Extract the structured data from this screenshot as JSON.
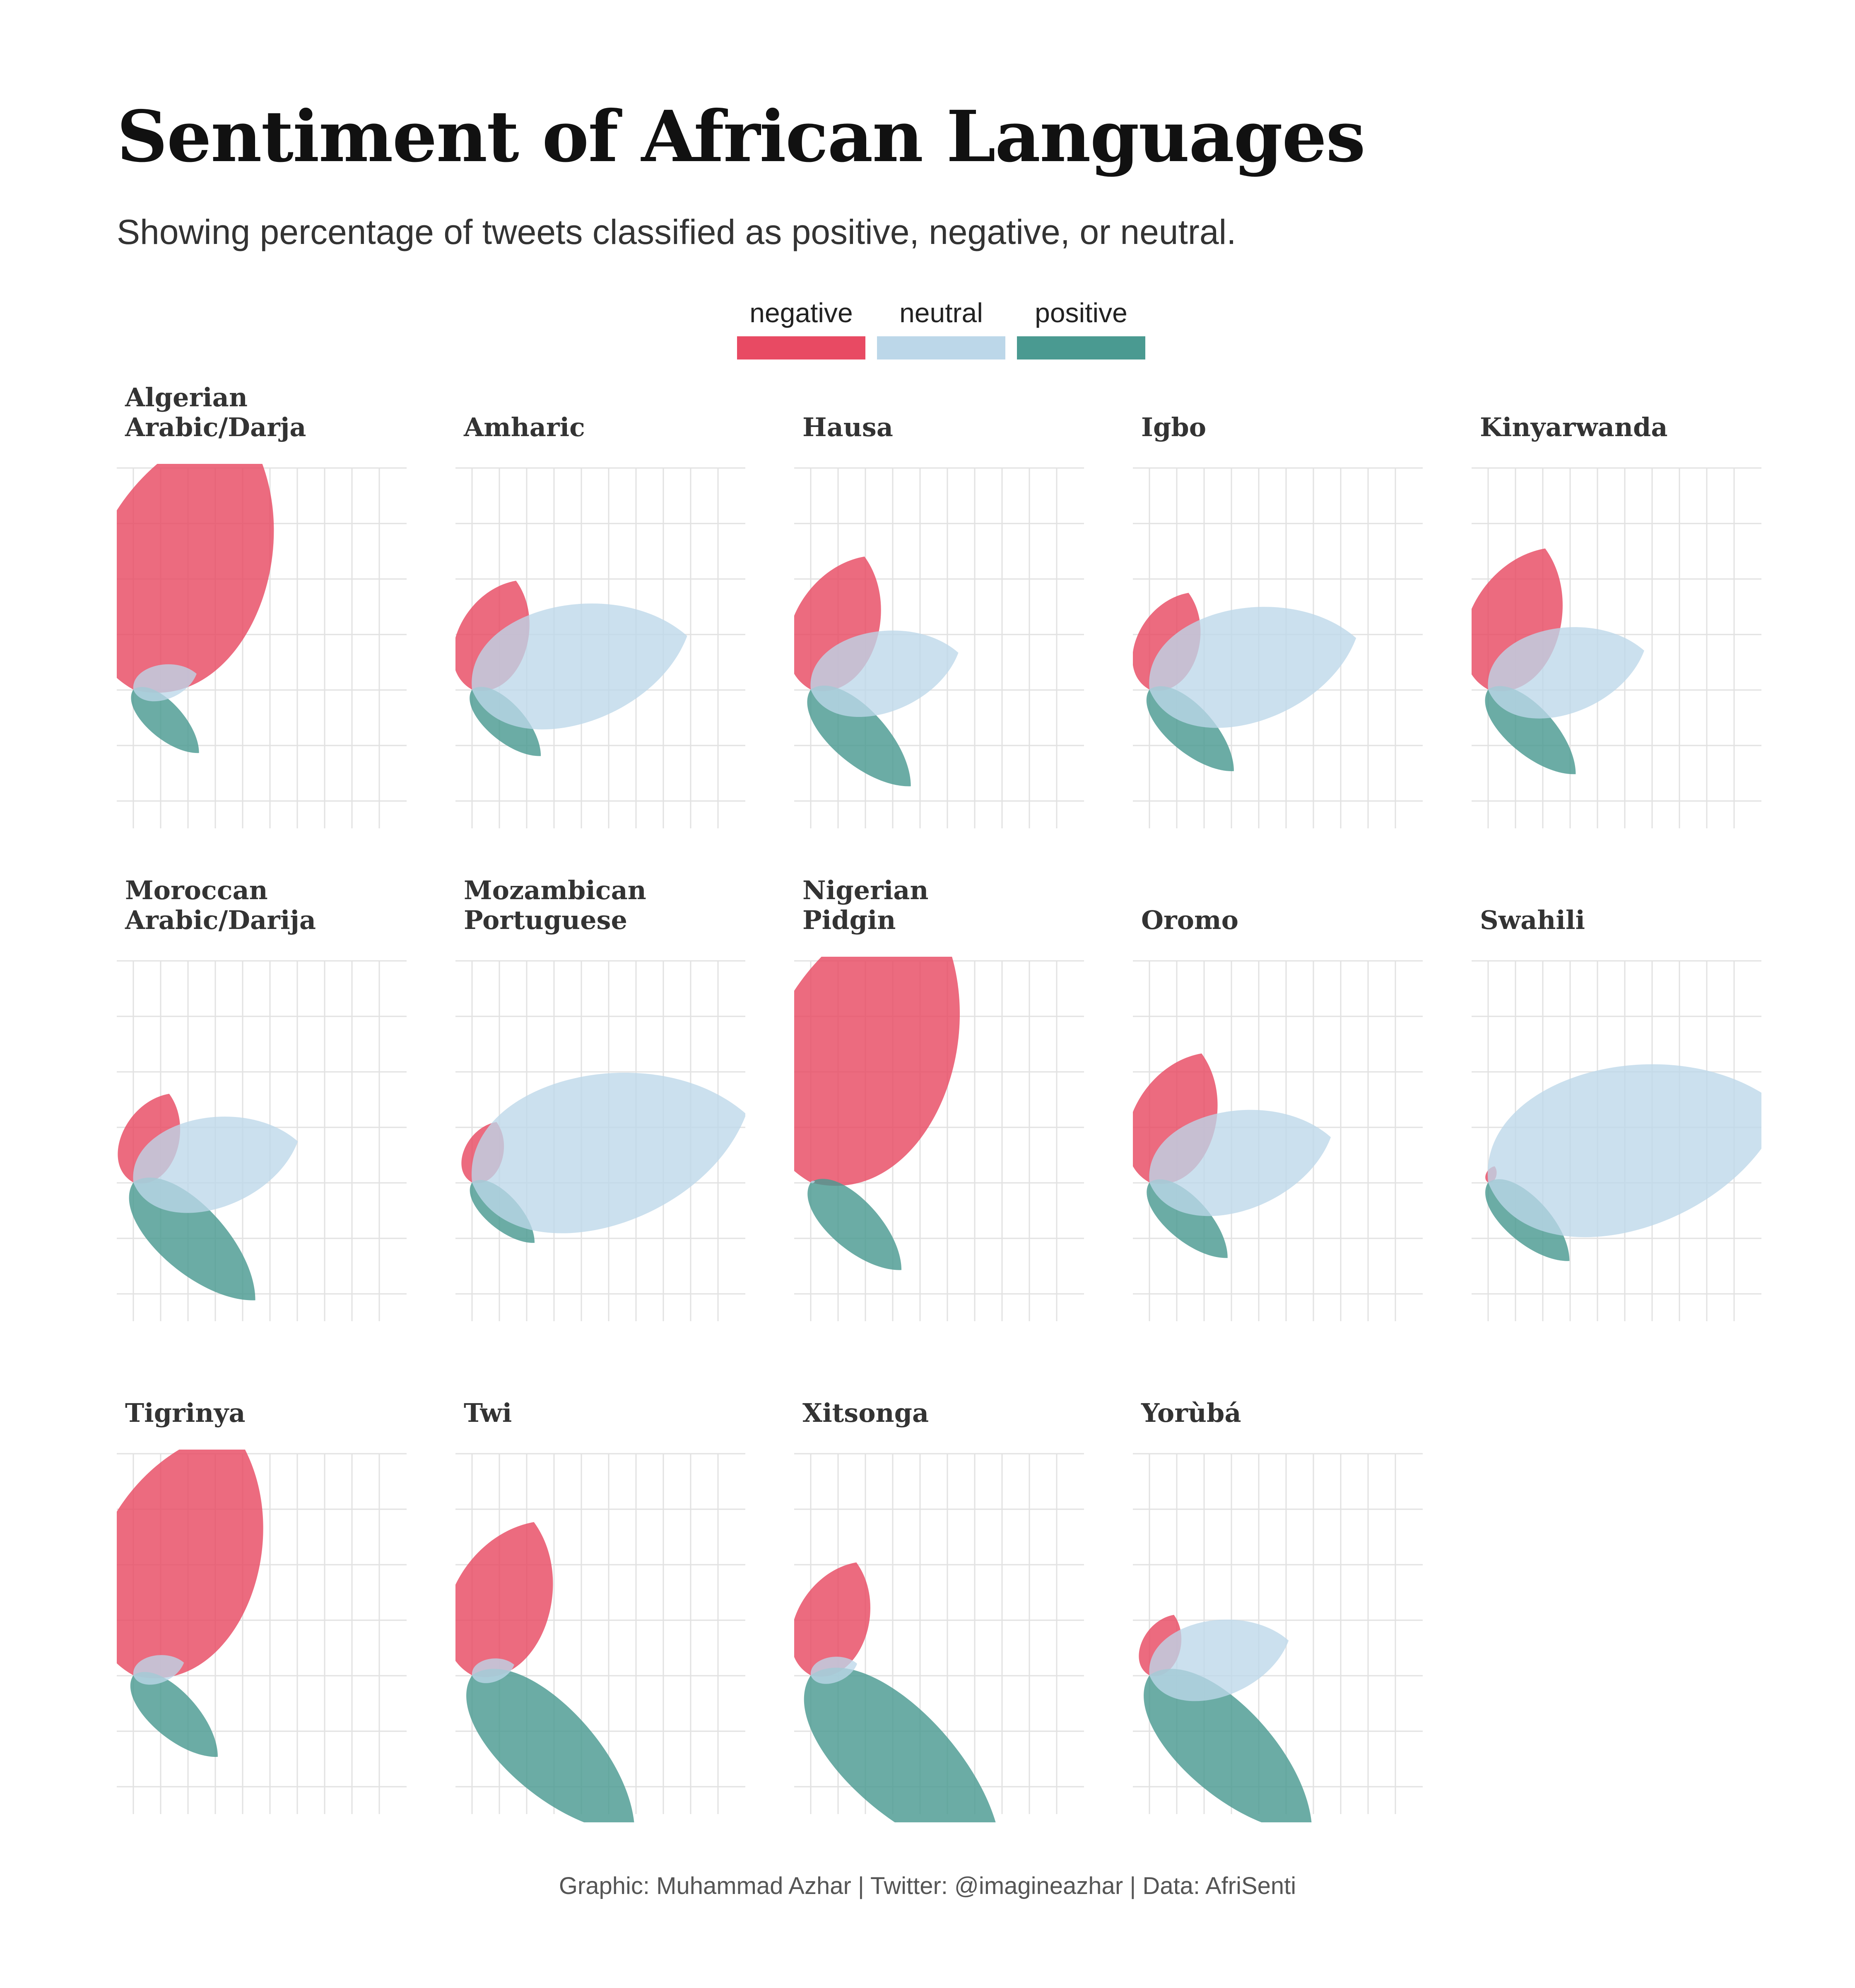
{
  "title": "Sentiment of African Languages",
  "subtitle": "Showing percentage of tweets classified as positive, negative, or neutral.",
  "legend": [
    {
      "label": "negative",
      "color": "#e84a63"
    },
    {
      "label": "neutral",
      "color": "#bcd7e9"
    },
    {
      "label": "positive",
      "color": "#4a9a91"
    }
  ],
  "footer": "Graphic: Muhammad Azhar | Twitter: @imagineazhar | Data: AfriSenti",
  "chart_data": {
    "type": "radial petal (small multiples)",
    "value_unit": "percent of tweets",
    "grid": true,
    "legend_placement": "top-center",
    "languages": [
      {
        "name": "Algerian\nArabic/Darja",
        "negative": 66,
        "neutral": 15,
        "positive": 21
      },
      {
        "name": "Amharic",
        "negative": 27,
        "neutral": 51,
        "positive": 22
      },
      {
        "name": "Hausa",
        "negative": 33,
        "neutral": 35,
        "positive": 32
      },
      {
        "name": "Igbo",
        "negative": 24,
        "neutral": 49,
        "positive": 27
      },
      {
        "name": "Kinyarwanda",
        "negative": 35,
        "neutral": 37,
        "positive": 28
      },
      {
        "name": "Moroccan\nArabic/Darija",
        "negative": 22,
        "neutral": 39,
        "positive": 39
      },
      {
        "name": "Mozambican\nPortuguese",
        "negative": 15,
        "neutral": 65,
        "positive": 20
      },
      {
        "name": "Nigerian\nPidgin",
        "negative": 70,
        "neutral": 1,
        "positive": 29
      },
      {
        "name": "Oromo",
        "negative": 32,
        "neutral": 43,
        "positive": 25
      },
      {
        "name": "Swahili",
        "negative": 4,
        "neutral": 70,
        "positive": 26
      },
      {
        "name": "Tigrinya",
        "negative": 61,
        "neutral": 12,
        "positive": 27
      },
      {
        "name": "Twi",
        "negative": 38,
        "neutral": 10,
        "positive": 52
      },
      {
        "name": "Xitsonga",
        "negative": 28,
        "neutral": 11,
        "positive": 61
      },
      {
        "name": "Yorùbá",
        "negative": 15,
        "neutral": 33,
        "positive": 52
      }
    ]
  }
}
